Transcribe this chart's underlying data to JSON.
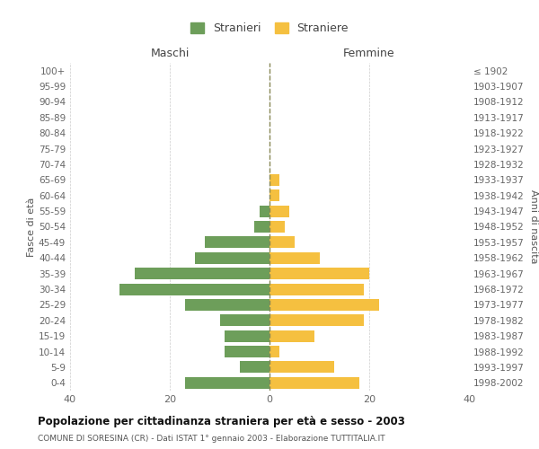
{
  "age_groups": [
    "100+",
    "95-99",
    "90-94",
    "85-89",
    "80-84",
    "75-79",
    "70-74",
    "65-69",
    "60-64",
    "55-59",
    "50-54",
    "45-49",
    "40-44",
    "35-39",
    "30-34",
    "25-29",
    "20-24",
    "15-19",
    "10-14",
    "5-9",
    "0-4"
  ],
  "birth_years": [
    "≤ 1902",
    "1903-1907",
    "1908-1912",
    "1913-1917",
    "1918-1922",
    "1923-1927",
    "1928-1932",
    "1933-1937",
    "1938-1942",
    "1943-1947",
    "1948-1952",
    "1953-1957",
    "1958-1962",
    "1963-1967",
    "1968-1972",
    "1973-1977",
    "1978-1982",
    "1983-1987",
    "1988-1992",
    "1993-1997",
    "1998-2002"
  ],
  "males": [
    0,
    0,
    0,
    0,
    0,
    0,
    0,
    0,
    0,
    2,
    3,
    13,
    15,
    27,
    30,
    17,
    10,
    9,
    9,
    6,
    17
  ],
  "females": [
    0,
    0,
    0,
    0,
    0,
    0,
    0,
    2,
    2,
    4,
    3,
    5,
    10,
    20,
    19,
    22,
    19,
    9,
    2,
    13,
    18
  ],
  "male_color": "#6d9e5a",
  "female_color": "#f5c040",
  "male_label": "Stranieri",
  "female_label": "Straniere",
  "title": "Popolazione per cittadinanza straniera per età e sesso - 2003",
  "subtitle": "COMUNE DI SORESINA (CR) - Dati ISTAT 1° gennaio 2003 - Elaborazione TUTTITALIA.IT",
  "xlabel_left": "Maschi",
  "xlabel_right": "Femmine",
  "ylabel_left": "Fasce di età",
  "ylabel_right": "Anni di nascita",
  "xlim": 40,
  "background_color": "#ffffff",
  "grid_color": "#cccccc"
}
